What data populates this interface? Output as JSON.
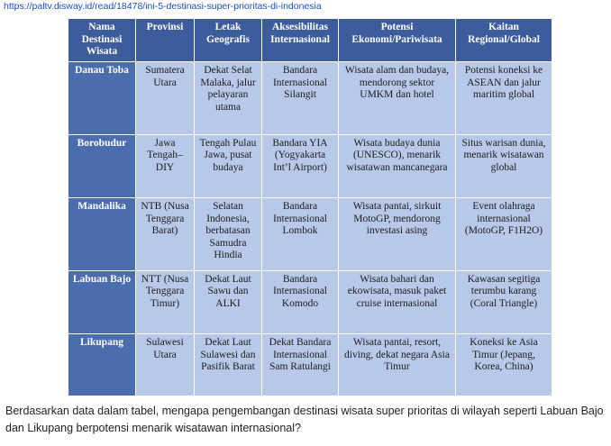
{
  "url": "https://paltv.disway.id/read/18478/ini-5-destinasi-super-prioritas-di-indonesia",
  "table": {
    "headers": [
      "Nama Destinasi Wisata",
      "Provinsi",
      "Letak Geografis",
      "Aksesibilitas Internasional",
      "Potensi Ekonomi/Pariwisata",
      "Kaitan Regional/Global"
    ],
    "rows": [
      [
        "Danau Toba",
        "Sumatera Utara",
        "Dekat Selat Malaka, jalur pelayaran utama",
        "Bandara Internasional Silangit",
        "Wisata alam dan budaya, mendorong sektor UMKM dan hotel",
        "Potensi koneksi ke ASEAN dan jalur maritim global"
      ],
      [
        "Borobudur",
        "Jawa Tengah–DIY",
        "Tengah Pulau Jawa, pusat budaya",
        "Bandara YIA (Yogyakarta Int’l Airport)",
        "Wisata budaya dunia (UNESCO), menarik wisatawan mancanegara",
        "Situs warisan dunia, menarik wisatawan global"
      ],
      [
        "Mandalika",
        "NTB (Nusa Tenggara Barat)",
        "Selatan Indonesia, berbatasan Samudra Hindia",
        "Bandara Internasional Lombok",
        "Wisata pantai, sirkuit MotoGP, mendorong investasi asing",
        "Event olahraga internasional (MotoGP, F1H2O)"
      ],
      [
        "Labuan Bajo",
        "NTT (Nusa Tenggara Timur)",
        "Dekat Laut Sawu dan ALKI",
        "Bandara Internasional Komodo",
        "Wisata bahari dan ekowisata, masuk paket cruise internasional",
        "Kawasan segitiga terumbu karang (Coral Triangle)"
      ],
      [
        "Likupang",
        "Sulawesi Utara",
        "Dekat Laut Sulawesi dan Pasifik Barat",
        "Dekat Bandara Internasional Sam Ratulangi",
        "Wisata pantai, resort, diving, dekat negara Asia Timur",
        "Koneksi ke Asia Timur (Jepang, Korea, China)"
      ]
    ]
  },
  "question": "Berdasarkan data dalam tabel, mengapa pengembangan destinasi wisata super prioritas di wilayah seperti Labuan Bajo dan Likupang berpotensi menarik wisatawan internasional?"
}
